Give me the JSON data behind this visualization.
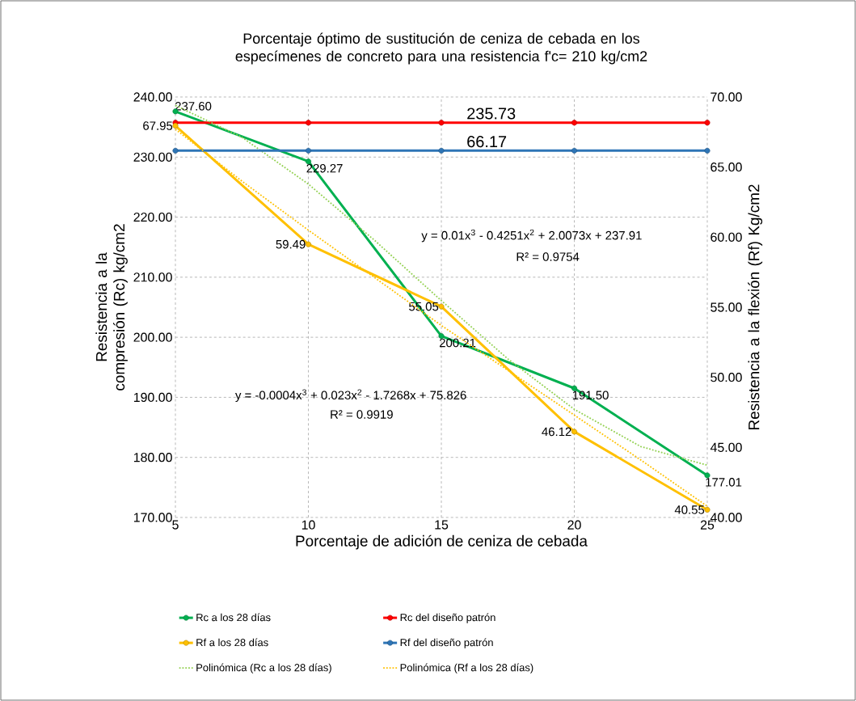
{
  "chart_data": {
    "type": "line",
    "title": "Porcentaje óptimo de sustitución de ceniza de cebada en los especímenes de concreto para una resistencia f'c= 210 kg/cm2",
    "xlabel": "Porcentaje de adición de ceniza de cebada",
    "ylabel": "Resistencia a la compresión (Rc) kg/cm2",
    "y2label": "Resistencia a la flexión (Rf) Kg/cm2",
    "x": [
      5,
      10,
      15,
      20,
      25
    ],
    "xlim": [
      5,
      25
    ],
    "xticks": [
      5,
      10,
      15,
      20,
      25
    ],
    "ylim": [
      170,
      240
    ],
    "yticks": [
      {
        "value": 170,
        "label": "170.00"
      },
      {
        "value": 180,
        "label": "180.00"
      },
      {
        "value": 190,
        "label": "190.00"
      },
      {
        "value": 200,
        "label": "200.00"
      },
      {
        "value": 210,
        "label": "210.00"
      },
      {
        "value": 220,
        "label": "220.00"
      },
      {
        "value": 230,
        "label": "230.00"
      },
      {
        "value": 240,
        "label": "240.00"
      }
    ],
    "y2lim": [
      40,
      70
    ],
    "y2ticks": [
      {
        "value": 40,
        "label": "40.00"
      },
      {
        "value": 45,
        "label": "45.00"
      },
      {
        "value": 50,
        "label": "50.00"
      },
      {
        "value": 55,
        "label": "55.00"
      },
      {
        "value": 60,
        "label": "60.00"
      },
      {
        "value": 65,
        "label": "65.00"
      },
      {
        "value": 70,
        "label": "70.00"
      }
    ],
    "grid": true,
    "legend": "bottom",
    "marker": "circle",
    "line_style": "solid",
    "series": [
      {
        "name": "Rc a los 28 días",
        "color": "#00b050",
        "values": [
          237.6,
          229.27,
          200.21,
          191.5,
          177.01
        ],
        "value_labels": [
          "237.60",
          "229.27",
          "200.21",
          "191.50",
          "177.01"
        ]
      },
      {
        "name": "Rc del diseño patrón",
        "color": "#ff0000",
        "values": [
          235.73,
          235.73,
          235.73,
          235.73,
          235.73
        ],
        "value_labels": [
          null,
          null,
          "235.73",
          null,
          null
        ]
      },
      {
        "name": "Rf a los 28 días",
        "color": "#ffc000",
        "axis": "y2",
        "values": [
          67.95,
          59.49,
          55.05,
          46.12,
          40.55
        ],
        "value_labels": [
          "67.95",
          "59.49",
          "55.05",
          "46.12",
          "40.55"
        ]
      },
      {
        "name": "Rf del diseño patrón",
        "color": "#2e75b6",
        "axis": "y2",
        "values": [
          66.17,
          66.17,
          66.17,
          66.17,
          66.17
        ],
        "value_labels": [
          null,
          null,
          "66.17",
          null,
          null
        ]
      },
      {
        "name": "Polinómica (Rc a los 28 días)",
        "color": "#92d050",
        "marker": "none",
        "line_style": "dotted",
        "x": [
          5,
          7.5,
          10,
          12.5,
          15,
          17.5,
          20,
          22.5,
          25
        ],
        "values": [
          238.6,
          233.3,
          225.5,
          216.1,
          206.1,
          196.4,
          188.0,
          181.8,
          178.7
        ]
      },
      {
        "name": "Polinómica (Rf a los 28 días)",
        "color": "#ffc000",
        "axis": "y2",
        "marker": "none",
        "line_style": "dotted",
        "x": [
          5,
          7.5,
          10,
          12.5,
          15,
          17.5,
          20,
          22.5,
          25
        ],
        "values": [
          67.7,
          64.0,
          60.5,
          57.1,
          53.7,
          50.5,
          47.3,
          44.1,
          40.8
        ]
      }
    ],
    "annotations": [
      "y = 0.01x$^{3}$ - 0.4251x$^{2}$ + 2.0073x + 237.91",
      "R² = 0.9754",
      "y = -0.0004x$^{3}$ + 0.023x$^{2}$ - 1.7268x + 75.826",
      "R² = 0.9919"
    ]
  }
}
